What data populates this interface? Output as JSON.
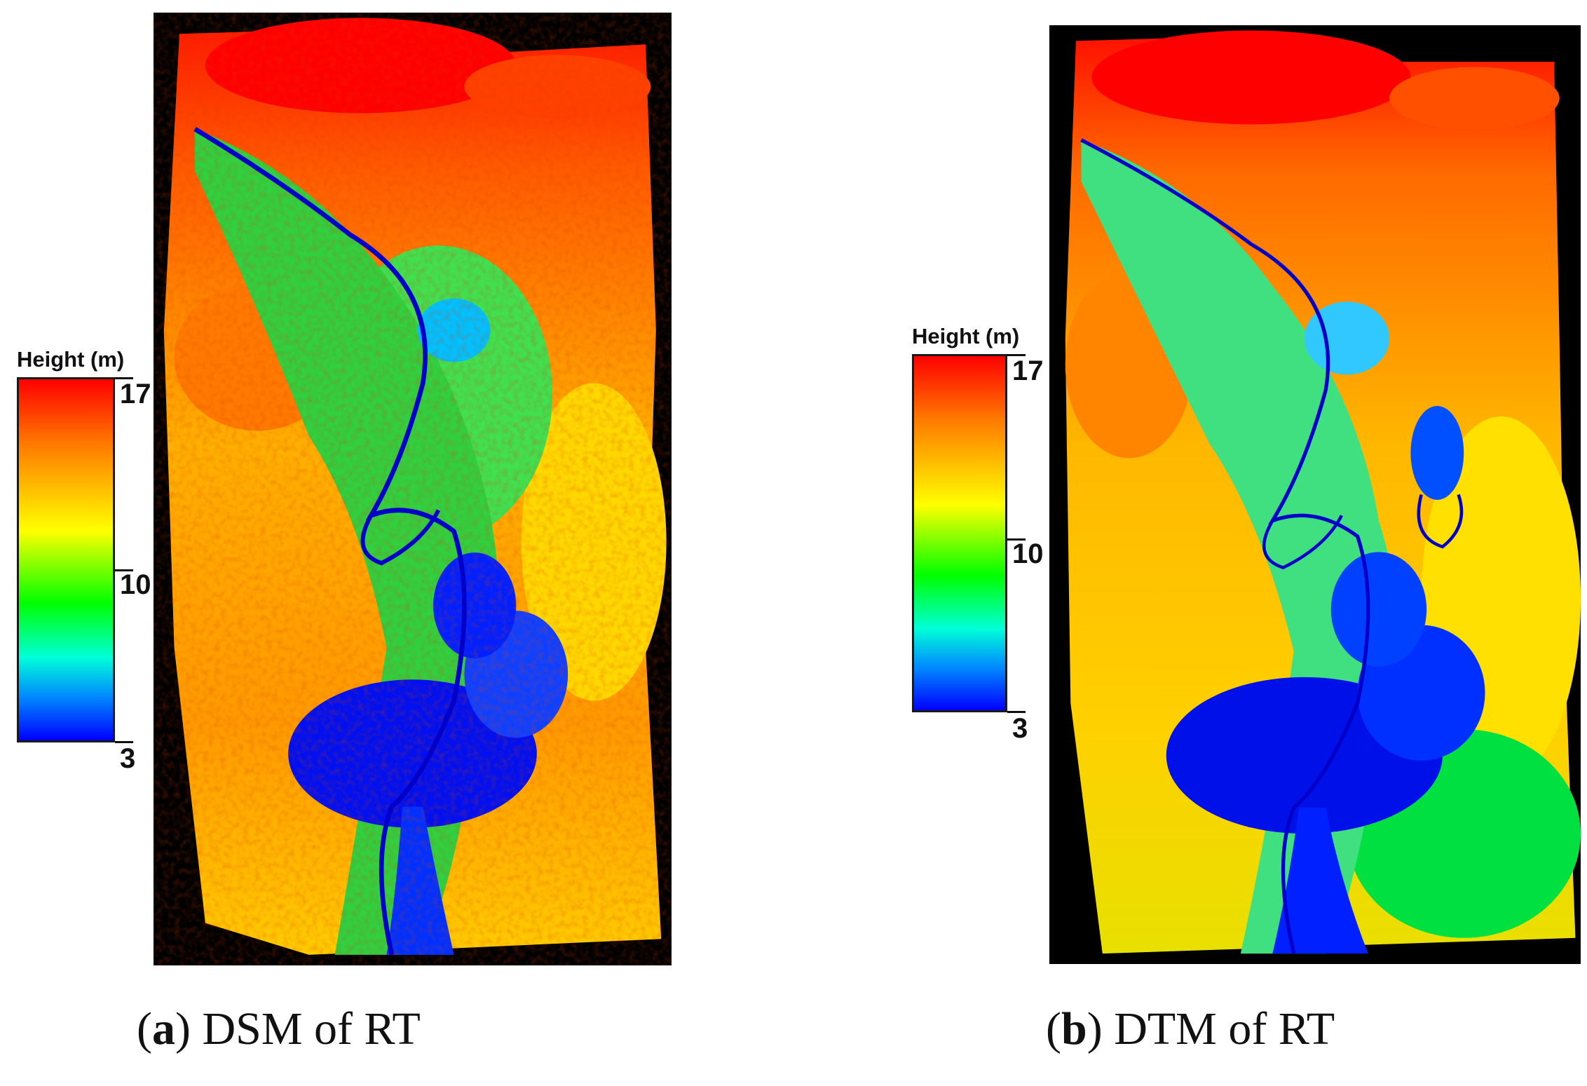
{
  "legend": {
    "title": "Height (m)",
    "ticks": {
      "max": "17",
      "mid": "10",
      "min": "3"
    },
    "colors": [
      "#ff0000",
      "#ff7a00",
      "#ffff00",
      "#00ff00",
      "#00ffd8",
      "#0088ff",
      "#0000ff"
    ]
  },
  "panels": [
    {
      "letter": "a",
      "caption": "DSM of RT"
    },
    {
      "letter": "b",
      "caption": "DTM of RT"
    }
  ]
}
